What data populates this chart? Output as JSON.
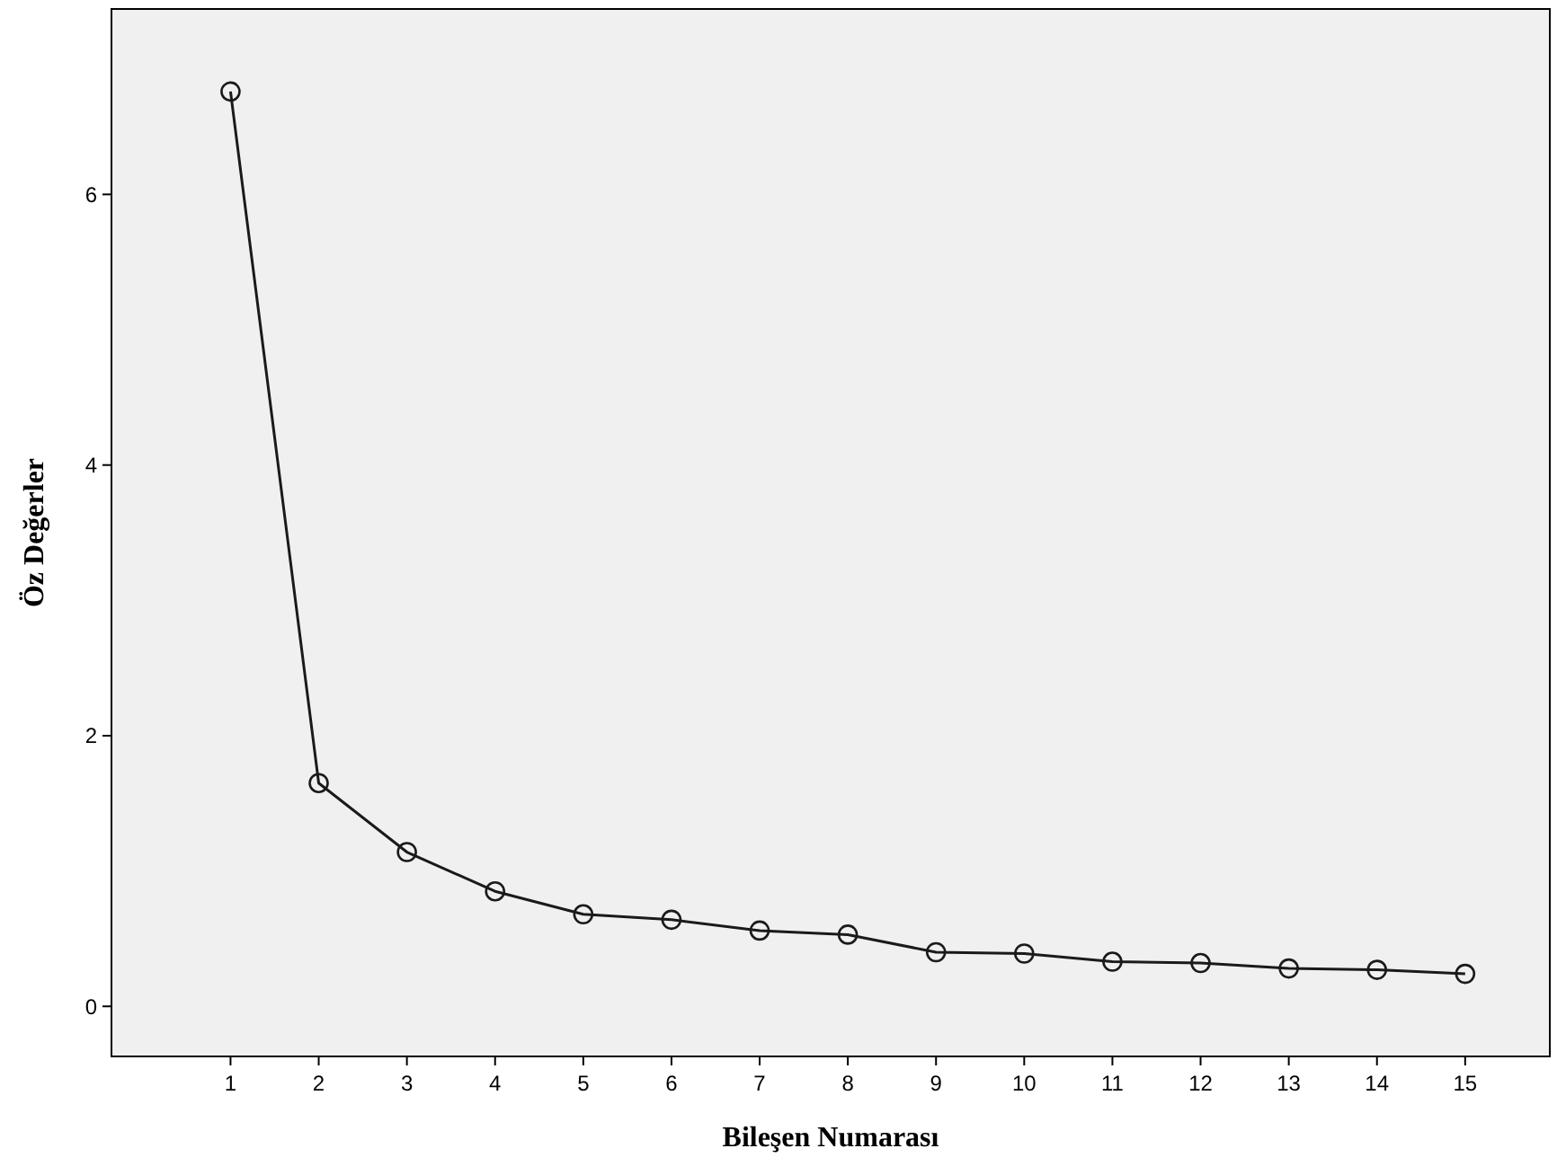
{
  "chart_data": {
    "type": "line",
    "xlabel": "Bileşen Numarası",
    "ylabel": "Öz Değerler",
    "x": [
      1,
      2,
      3,
      4,
      5,
      6,
      7,
      8,
      9,
      10,
      11,
      12,
      13,
      14,
      15
    ],
    "series": [
      {
        "color": "#1a1a1a",
        "values": [
          6.76,
          1.65,
          1.14,
          0.85,
          0.68,
          0.64,
          0.56,
          0.53,
          0.4,
          0.39,
          0.33,
          0.32,
          0.28,
          0.27,
          0.24
        ]
      }
    ],
    "xlim": [
      -0.35,
      15.96
    ],
    "xticks": [
      1,
      2,
      3,
      4,
      5,
      6,
      7,
      8,
      9,
      10,
      11,
      12,
      13,
      14,
      15
    ],
    "ylim": [
      -0.37,
      7.37
    ],
    "yticks": [
      0,
      2,
      4,
      6
    ],
    "marker": "circle",
    "line_style": "solid"
  }
}
